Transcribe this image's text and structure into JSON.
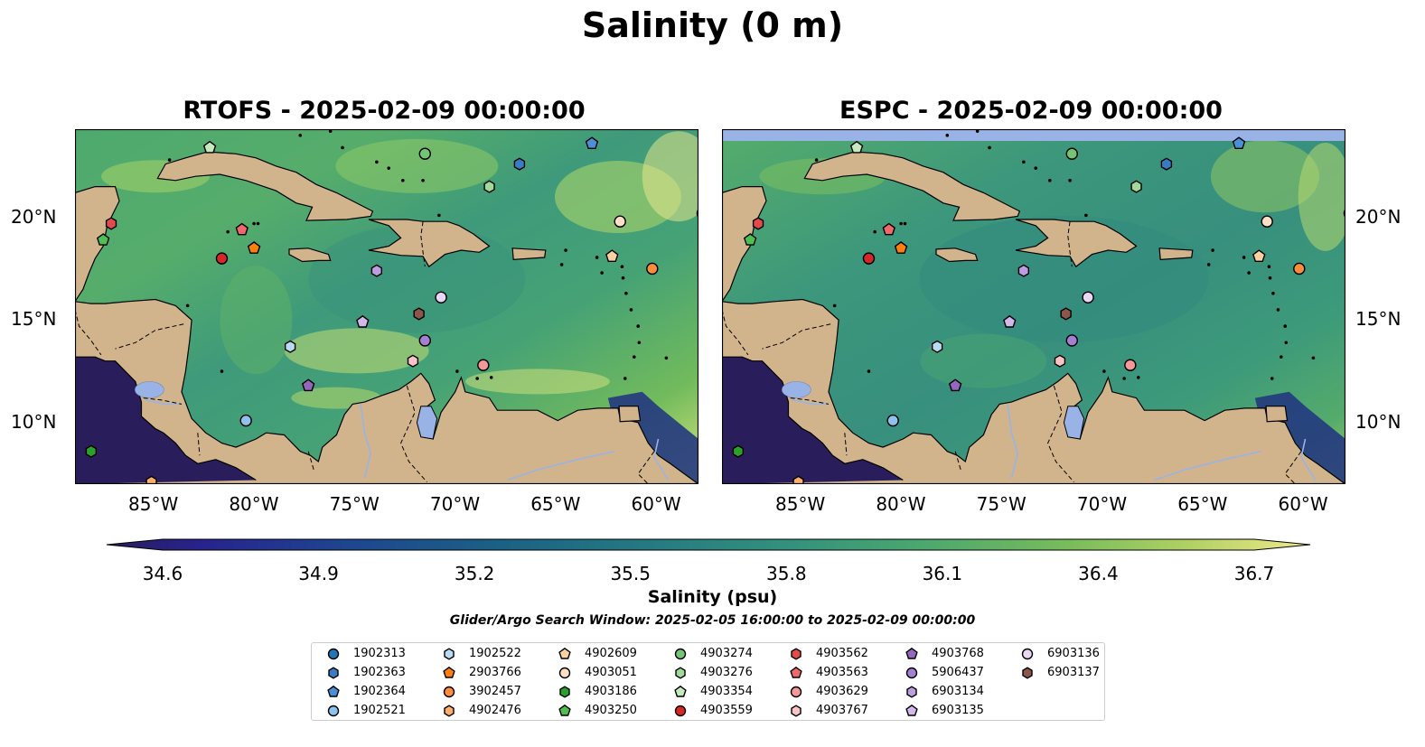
{
  "suptitle": "Salinity (0 m)",
  "panels": [
    {
      "title": "RTOFS - 2025-02-09 00:00:00",
      "model": "rtofs"
    },
    {
      "title": "ESPC - 2025-02-09 00:00:00",
      "model": "espc"
    }
  ],
  "axes": {
    "x_ticks": [
      "85°W",
      "80°W",
      "75°W",
      "70°W",
      "65°W",
      "60°W"
    ],
    "y_ticks": [
      "20°N",
      "15°N",
      "10°N"
    ]
  },
  "colorbar": {
    "label": "Salinity (psu)",
    "ticks": [
      "34.6",
      "34.9",
      "35.2",
      "35.5",
      "35.8",
      "36.1",
      "36.4",
      "36.7"
    ],
    "vmin": 34.6,
    "vmax": 36.7,
    "extend": "both",
    "colormap": "haline"
  },
  "search_window": "Glider/Argo Search Window: 2025-02-05 16:00:00 to 2025-02-09 00:00:00",
  "colors": {
    "land": "#d2b48c",
    "water_body": "#99b3e6",
    "ocean_deep": "#2a1d5c"
  },
  "legend": [
    {
      "id": "1902313",
      "marker": "circle",
      "color": "#1f77b4"
    },
    {
      "id": "1902363",
      "marker": "hexagon",
      "color": "#3a7cc4"
    },
    {
      "id": "1902364",
      "marker": "pentagon",
      "color": "#4a90d9"
    },
    {
      "id": "1902521",
      "marker": "circle",
      "color": "#8ec2ee"
    },
    {
      "id": "1902522",
      "marker": "hexagon",
      "color": "#b7dbf5"
    },
    {
      "id": "2903766",
      "marker": "pentagon",
      "color": "#ff7f0e"
    },
    {
      "id": "3902457",
      "marker": "circle",
      "color": "#fd8d3c"
    },
    {
      "id": "4902476",
      "marker": "hexagon",
      "color": "#fdae6b"
    },
    {
      "id": "4902609",
      "marker": "pentagon",
      "color": "#fdd0a2"
    },
    {
      "id": "4903051",
      "marker": "circle",
      "color": "#fde0c5"
    },
    {
      "id": "4903186",
      "marker": "hexagon",
      "color": "#2ca02c"
    },
    {
      "id": "4903250",
      "marker": "pentagon",
      "color": "#4fbf4f"
    },
    {
      "id": "4903274",
      "marker": "circle",
      "color": "#74c476"
    },
    {
      "id": "4903276",
      "marker": "hexagon",
      "color": "#a1d99b"
    },
    {
      "id": "4903354",
      "marker": "pentagon",
      "color": "#c7e9c0"
    },
    {
      "id": "4903559",
      "marker": "circle",
      "color": "#d62728"
    },
    {
      "id": "4903562",
      "marker": "hexagon",
      "color": "#e34a4a"
    },
    {
      "id": "4903563",
      "marker": "pentagon",
      "color": "#f0686a"
    },
    {
      "id": "4903629",
      "marker": "circle",
      "color": "#f4989a"
    },
    {
      "id": "4903767",
      "marker": "hexagon",
      "color": "#fbc4c4"
    },
    {
      "id": "4903768",
      "marker": "pentagon",
      "color": "#9467bd"
    },
    {
      "id": "5906437",
      "marker": "circle",
      "color": "#a57fd2"
    },
    {
      "id": "6903134",
      "marker": "hexagon",
      "color": "#bc9ee0"
    },
    {
      "id": "6903135",
      "marker": "pentagon",
      "color": "#d2b9ec"
    },
    {
      "id": "6903136",
      "marker": "circle",
      "color": "#e8d7f5"
    },
    {
      "id": "6903137",
      "marker": "hexagon",
      "color": "#8c564b"
    }
  ],
  "floats": [
    {
      "id": "1902313",
      "lon": -57.8,
      "lat": 20.2
    },
    {
      "id": "1902363",
      "lon": -66.9,
      "lat": 22.6
    },
    {
      "id": "1902364",
      "lon": -63.3,
      "lat": 23.6
    },
    {
      "id": "1902521",
      "lon": -80.5,
      "lat": 10.1
    },
    {
      "id": "1902522",
      "lon": -78.3,
      "lat": 13.7
    },
    {
      "id": "2903766",
      "lon": -80.1,
      "lat": 18.5
    },
    {
      "id": "3902457",
      "lon": -60.3,
      "lat": 17.5
    },
    {
      "id": "4902476",
      "lon": -85.2,
      "lat": 7.1
    },
    {
      "id": "4902609",
      "lon": -62.3,
      "lat": 18.1
    },
    {
      "id": "4903051",
      "lon": -61.9,
      "lat": 19.8
    },
    {
      "id": "4903186",
      "lon": -88.2,
      "lat": 8.6
    },
    {
      "id": "4903250",
      "lon": -87.6,
      "lat": 18.9
    },
    {
      "id": "4903274",
      "lon": -71.6,
      "lat": 23.1
    },
    {
      "id": "4903276",
      "lon": -68.4,
      "lat": 21.5
    },
    {
      "id": "4903354",
      "lon": -82.3,
      "lat": 23.4
    },
    {
      "id": "4903559",
      "lon": -81.7,
      "lat": 18.0
    },
    {
      "id": "4903562",
      "lon": -87.2,
      "lat": 19.7
    },
    {
      "id": "4903563",
      "lon": -80.7,
      "lat": 19.4
    },
    {
      "id": "4903629",
      "lon": -68.7,
      "lat": 12.8
    },
    {
      "id": "4903767",
      "lon": -72.2,
      "lat": 13.0
    },
    {
      "id": "4903768",
      "lon": -77.4,
      "lat": 11.8
    },
    {
      "id": "5906437",
      "lon": -71.6,
      "lat": 14.0
    },
    {
      "id": "6903134",
      "lon": -74.0,
      "lat": 17.4
    },
    {
      "id": "6903135",
      "lon": -74.7,
      "lat": 14.9
    },
    {
      "id": "6903136",
      "lon": -70.8,
      "lat": 16.1
    },
    {
      "id": "6903137",
      "lon": -71.9,
      "lat": 15.3
    }
  ]
}
